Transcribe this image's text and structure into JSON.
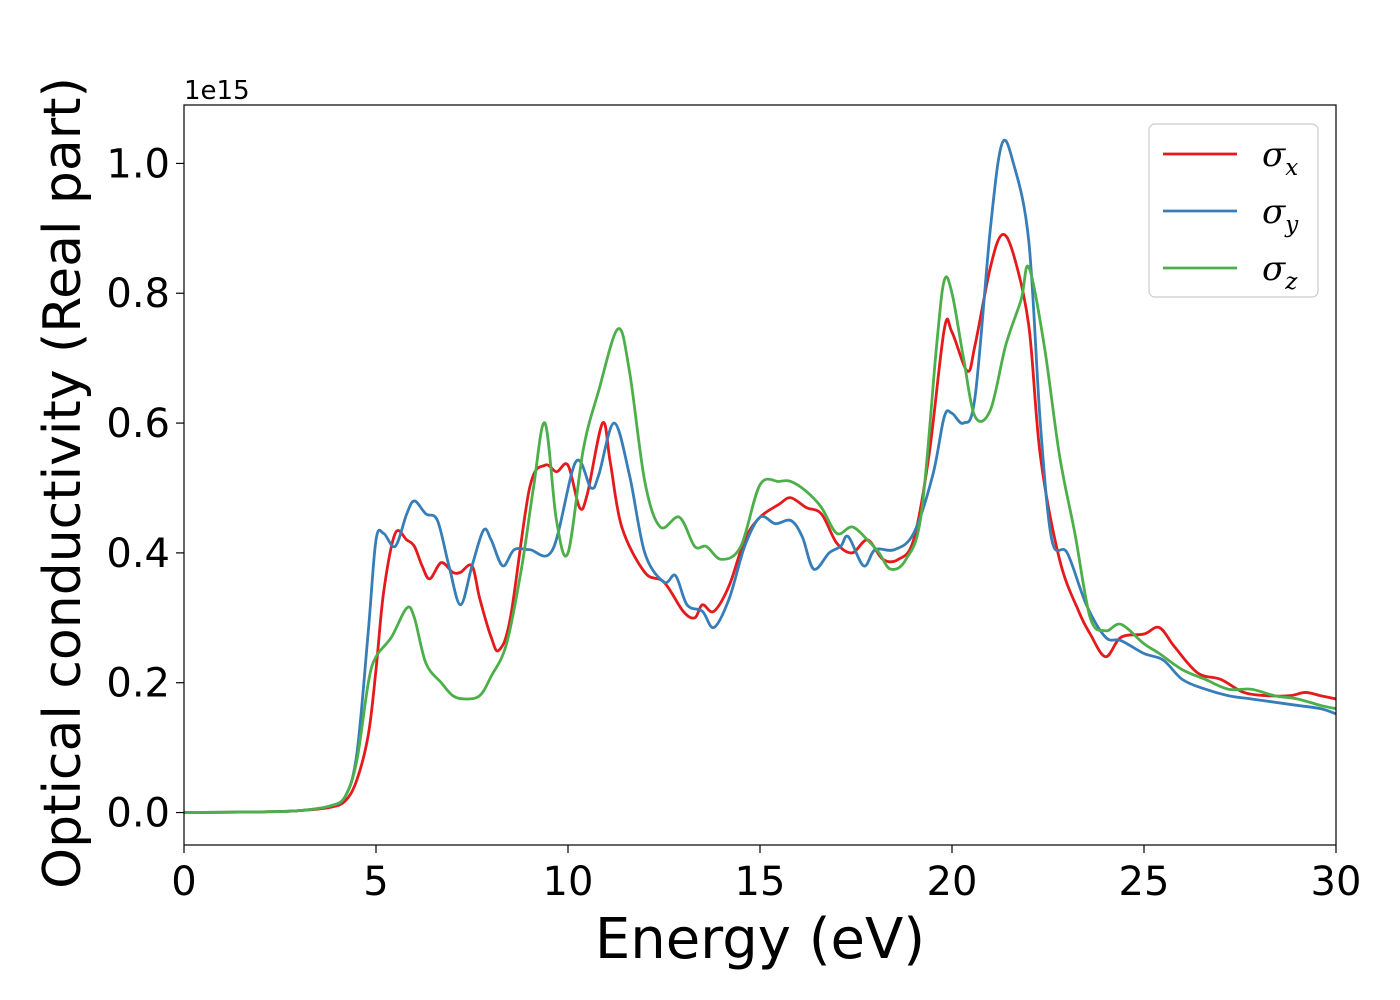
{
  "chart_data": {
    "type": "line",
    "xlabel": "Energy (eV)",
    "ylabel": "Optical conductivity (Real part)",
    "y_offset_text": "1e15",
    "xlim": [
      0,
      30
    ],
    "ylim": [
      -0.05,
      1.09
    ],
    "x_ticks": [
      0,
      5,
      10,
      15,
      20,
      25,
      30
    ],
    "x_tick_labels": [
      "0",
      "5",
      "10",
      "15",
      "20",
      "25",
      "30"
    ],
    "y_ticks": [
      0.0,
      0.2,
      0.4,
      0.6,
      0.8,
      1.0
    ],
    "y_tick_labels": [
      "0.0",
      "0.2",
      "0.4",
      "0.6",
      "0.8",
      "1.0"
    ],
    "grid": false,
    "legend_position": "top-right",
    "series": [
      {
        "name": "σx",
        "symbol": "σ",
        "subscript": "x",
        "color": "#e41a1c",
        "points": [
          [
            0,
            0
          ],
          [
            2,
            0.001
          ],
          [
            3,
            0.003
          ],
          [
            3.8,
            0.008
          ],
          [
            4.2,
            0.018
          ],
          [
            4.5,
            0.05
          ],
          [
            4.8,
            0.12
          ],
          [
            5.0,
            0.22
          ],
          [
            5.2,
            0.34
          ],
          [
            5.5,
            0.43
          ],
          [
            5.8,
            0.42
          ],
          [
            6.0,
            0.41
          ],
          [
            6.2,
            0.38
          ],
          [
            6.4,
            0.36
          ],
          [
            6.7,
            0.385
          ],
          [
            7.0,
            0.37
          ],
          [
            7.2,
            0.37
          ],
          [
            7.5,
            0.38
          ],
          [
            7.7,
            0.33
          ],
          [
            8.0,
            0.27
          ],
          [
            8.2,
            0.25
          ],
          [
            8.5,
            0.3
          ],
          [
            9.0,
            0.5
          ],
          [
            9.4,
            0.535
          ],
          [
            9.7,
            0.525
          ],
          [
            10.0,
            0.535
          ],
          [
            10.3,
            0.47
          ],
          [
            10.5,
            0.49
          ],
          [
            10.9,
            0.6
          ],
          [
            11.1,
            0.54
          ],
          [
            11.4,
            0.44
          ],
          [
            12.0,
            0.37
          ],
          [
            12.5,
            0.355
          ],
          [
            13.0,
            0.31
          ],
          [
            13.3,
            0.3
          ],
          [
            13.5,
            0.32
          ],
          [
            13.8,
            0.31
          ],
          [
            14.2,
            0.35
          ],
          [
            14.6,
            0.42
          ],
          [
            15.0,
            0.455
          ],
          [
            15.5,
            0.475
          ],
          [
            15.8,
            0.485
          ],
          [
            16.2,
            0.47
          ],
          [
            16.6,
            0.46
          ],
          [
            17.0,
            0.415
          ],
          [
            17.4,
            0.4
          ],
          [
            17.8,
            0.42
          ],
          [
            18.2,
            0.39
          ],
          [
            18.6,
            0.39
          ],
          [
            19.0,
            0.42
          ],
          [
            19.4,
            0.55
          ],
          [
            19.8,
            0.745
          ],
          [
            20.0,
            0.74
          ],
          [
            20.4,
            0.68
          ],
          [
            20.6,
            0.72
          ],
          [
            21.0,
            0.84
          ],
          [
            21.3,
            0.89
          ],
          [
            21.6,
            0.86
          ],
          [
            22.0,
            0.75
          ],
          [
            22.3,
            0.55
          ],
          [
            22.8,
            0.39
          ],
          [
            23.3,
            0.31
          ],
          [
            23.6,
            0.275
          ],
          [
            24.0,
            0.24
          ],
          [
            24.4,
            0.27
          ],
          [
            25.0,
            0.275
          ],
          [
            25.4,
            0.285
          ],
          [
            25.8,
            0.255
          ],
          [
            26.4,
            0.215
          ],
          [
            27.0,
            0.205
          ],
          [
            27.6,
            0.185
          ],
          [
            28.2,
            0.18
          ],
          [
            28.8,
            0.18
          ],
          [
            29.2,
            0.185
          ],
          [
            29.6,
            0.18
          ],
          [
            30.0,
            0.175
          ]
        ]
      },
      {
        "name": "σy",
        "symbol": "σ",
        "subscript": "y",
        "color": "#377eb8",
        "points": [
          [
            0,
            0
          ],
          [
            2,
            0.001
          ],
          [
            3,
            0.003
          ],
          [
            3.8,
            0.01
          ],
          [
            4.2,
            0.025
          ],
          [
            4.5,
            0.09
          ],
          [
            4.8,
            0.28
          ],
          [
            5.0,
            0.42
          ],
          [
            5.2,
            0.43
          ],
          [
            5.5,
            0.41
          ],
          [
            5.8,
            0.46
          ],
          [
            6.0,
            0.48
          ],
          [
            6.3,
            0.46
          ],
          [
            6.6,
            0.45
          ],
          [
            6.9,
            0.38
          ],
          [
            7.2,
            0.32
          ],
          [
            7.5,
            0.38
          ],
          [
            7.8,
            0.435
          ],
          [
            8.0,
            0.42
          ],
          [
            8.3,
            0.38
          ],
          [
            8.6,
            0.405
          ],
          [
            9.0,
            0.405
          ],
          [
            9.6,
            0.405
          ],
          [
            10.2,
            0.54
          ],
          [
            10.6,
            0.5
          ],
          [
            10.8,
            0.52
          ],
          [
            11.2,
            0.6
          ],
          [
            11.6,
            0.52
          ],
          [
            12.0,
            0.4
          ],
          [
            12.5,
            0.355
          ],
          [
            12.8,
            0.365
          ],
          [
            13.1,
            0.32
          ],
          [
            13.5,
            0.31
          ],
          [
            13.8,
            0.285
          ],
          [
            14.2,
            0.33
          ],
          [
            14.6,
            0.41
          ],
          [
            15.0,
            0.455
          ],
          [
            15.4,
            0.445
          ],
          [
            15.8,
            0.45
          ],
          [
            16.1,
            0.425
          ],
          [
            16.4,
            0.375
          ],
          [
            16.8,
            0.4
          ],
          [
            17.1,
            0.41
          ],
          [
            17.3,
            0.425
          ],
          [
            17.7,
            0.38
          ],
          [
            18.0,
            0.405
          ],
          [
            18.5,
            0.405
          ],
          [
            19.0,
            0.43
          ],
          [
            19.5,
            0.52
          ],
          [
            19.8,
            0.61
          ],
          [
            20.0,
            0.615
          ],
          [
            20.3,
            0.6
          ],
          [
            20.6,
            0.64
          ],
          [
            21.0,
            0.9
          ],
          [
            21.3,
            1.03
          ],
          [
            21.6,
            1.0
          ],
          [
            22.0,
            0.88
          ],
          [
            22.3,
            0.6
          ],
          [
            22.6,
            0.42
          ],
          [
            23.0,
            0.4
          ],
          [
            23.5,
            0.32
          ],
          [
            24.0,
            0.27
          ],
          [
            24.4,
            0.265
          ],
          [
            25.0,
            0.245
          ],
          [
            25.5,
            0.235
          ],
          [
            26.0,
            0.205
          ],
          [
            26.6,
            0.19
          ],
          [
            27.2,
            0.18
          ],
          [
            27.8,
            0.175
          ],
          [
            28.4,
            0.17
          ],
          [
            29.0,
            0.165
          ],
          [
            29.6,
            0.16
          ],
          [
            30.0,
            0.152
          ]
        ]
      },
      {
        "name": "σz",
        "symbol": "σ",
        "subscript": "z",
        "color": "#4daf4a",
        "points": [
          [
            0,
            0
          ],
          [
            2,
            0.001
          ],
          [
            3,
            0.003
          ],
          [
            3.8,
            0.01
          ],
          [
            4.2,
            0.025
          ],
          [
            4.5,
            0.08
          ],
          [
            4.8,
            0.2
          ],
          [
            5.0,
            0.24
          ],
          [
            5.4,
            0.27
          ],
          [
            5.8,
            0.315
          ],
          [
            6.0,
            0.3
          ],
          [
            6.3,
            0.23
          ],
          [
            6.7,
            0.2
          ],
          [
            7.0,
            0.18
          ],
          [
            7.3,
            0.175
          ],
          [
            7.7,
            0.18
          ],
          [
            8.0,
            0.21
          ],
          [
            8.4,
            0.26
          ],
          [
            8.8,
            0.38
          ],
          [
            9.1,
            0.5
          ],
          [
            9.4,
            0.6
          ],
          [
            9.7,
            0.45
          ],
          [
            10.0,
            0.4
          ],
          [
            10.4,
            0.56
          ],
          [
            10.8,
            0.65
          ],
          [
            11.3,
            0.745
          ],
          [
            11.6,
            0.68
          ],
          [
            12.0,
            0.51
          ],
          [
            12.4,
            0.44
          ],
          [
            12.9,
            0.455
          ],
          [
            13.3,
            0.41
          ],
          [
            13.6,
            0.41
          ],
          [
            14.0,
            0.39
          ],
          [
            14.5,
            0.41
          ],
          [
            15.0,
            0.505
          ],
          [
            15.5,
            0.51
          ],
          [
            15.8,
            0.51
          ],
          [
            16.2,
            0.495
          ],
          [
            16.6,
            0.47
          ],
          [
            17.0,
            0.43
          ],
          [
            17.4,
            0.44
          ],
          [
            17.8,
            0.42
          ],
          [
            18.1,
            0.4
          ],
          [
            18.4,
            0.375
          ],
          [
            18.8,
            0.39
          ],
          [
            19.2,
            0.46
          ],
          [
            19.6,
            0.72
          ],
          [
            19.8,
            0.82
          ],
          [
            20.0,
            0.8
          ],
          [
            20.3,
            0.7
          ],
          [
            20.6,
            0.61
          ],
          [
            21.0,
            0.62
          ],
          [
            21.4,
            0.72
          ],
          [
            21.8,
            0.79
          ],
          [
            22.0,
            0.84
          ],
          [
            22.4,
            0.72
          ],
          [
            22.8,
            0.55
          ],
          [
            23.2,
            0.43
          ],
          [
            23.6,
            0.3
          ],
          [
            24.0,
            0.28
          ],
          [
            24.4,
            0.29
          ],
          [
            25.0,
            0.26
          ],
          [
            25.4,
            0.245
          ],
          [
            26.0,
            0.22
          ],
          [
            26.6,
            0.205
          ],
          [
            27.2,
            0.19
          ],
          [
            27.8,
            0.19
          ],
          [
            28.4,
            0.18
          ],
          [
            29.0,
            0.175
          ],
          [
            29.6,
            0.165
          ],
          [
            30.0,
            0.16
          ]
        ]
      }
    ]
  }
}
